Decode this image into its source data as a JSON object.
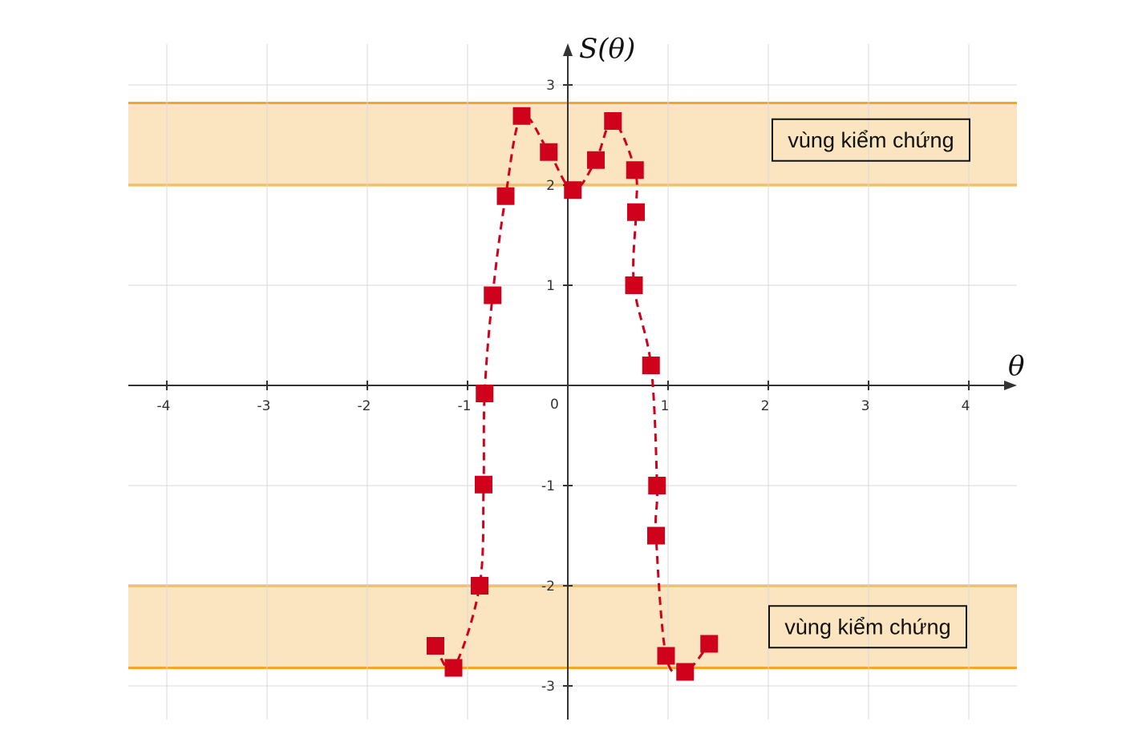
{
  "chart_data": {
    "type": "scatter",
    "xlabel": "θ",
    "ylabel": "S(θ)",
    "xlim": [
      -4.4,
      4.4
    ],
    "ylim": [
      -3.3,
      3.4
    ],
    "origin_label": "0",
    "x_ticks": [
      {
        "value": -4,
        "label": "-4"
      },
      {
        "value": -3,
        "label": "-3"
      },
      {
        "value": -2,
        "label": "-2"
      },
      {
        "value": -1,
        "label": "-1"
      },
      {
        "value": 1,
        "label": "1"
      },
      {
        "value": 2,
        "label": "2"
      },
      {
        "value": 3,
        "label": "3"
      },
      {
        "value": 4,
        "label": "4"
      }
    ],
    "y_ticks": [
      {
        "value": -3,
        "label": "-3"
      },
      {
        "value": -2,
        "label": "-2"
      },
      {
        "value": -1,
        "label": "-1"
      },
      {
        "value": 1,
        "label": "1"
      },
      {
        "value": 2,
        "label": "2"
      },
      {
        "value": 3,
        "label": "3"
      }
    ],
    "grid": true,
    "bands": [
      {
        "y_from": 2.0,
        "y_to": 2.82,
        "label": "vùng kiểm chứng"
      },
      {
        "y_from": -2.82,
        "y_to": -2.0,
        "label": "vùng kiểm chứng"
      }
    ],
    "series": [
      {
        "marker": "square",
        "color": "#d0021b",
        "line_style": "dashed",
        "points": [
          [
            -1.32,
            -2.6
          ],
          [
            -1.14,
            -2.82
          ],
          [
            -0.88,
            -2.0
          ],
          [
            -0.84,
            -0.99
          ],
          [
            -0.83,
            -0.08
          ],
          [
            -0.75,
            0.9
          ],
          [
            -0.62,
            1.89
          ],
          [
            -0.46,
            2.69
          ],
          [
            -0.19,
            2.33
          ],
          [
            0.05,
            1.95
          ],
          [
            0.28,
            2.25
          ],
          [
            0.45,
            2.64
          ],
          [
            0.67,
            2.15
          ],
          [
            0.68,
            1.73
          ],
          [
            0.66,
            1.0
          ],
          [
            0.83,
            0.2
          ],
          [
            0.89,
            -1.0
          ],
          [
            0.88,
            -1.5
          ],
          [
            0.98,
            -2.7
          ],
          [
            1.17,
            -2.86
          ],
          [
            1.41,
            -2.58
          ]
        ]
      }
    ],
    "colors": {
      "band_fill": "#fbe5c0",
      "band_edge": "#f5a623",
      "grid": "#d9d9d9",
      "axis": "#333333"
    }
  }
}
